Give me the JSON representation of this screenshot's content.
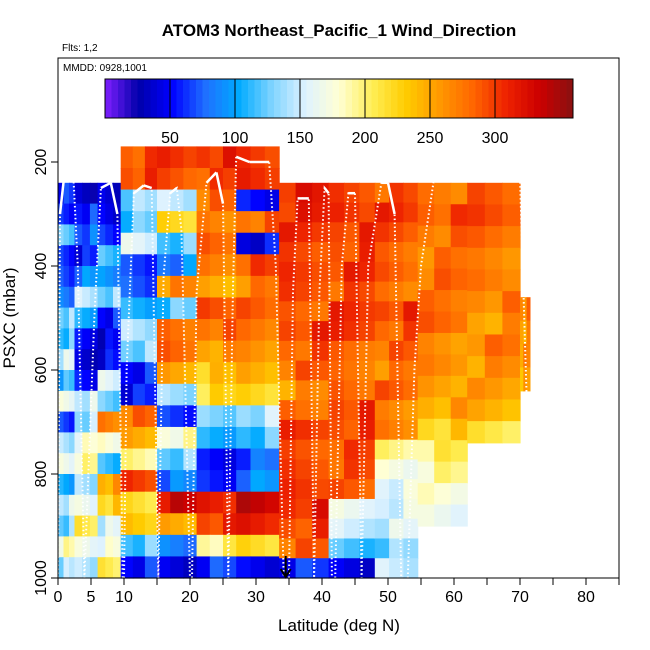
{
  "chart_data": {
    "type": "heatmap",
    "title": "ATOM3 Northeast_Pacific_1 Wind_Direction",
    "flights_label": "Flts: 1,2",
    "date_label": "MMDD: 0928,1001",
    "xlabel": "Latitude (deg N)",
    "ylabel": "PSXC (mbar)",
    "xlim": [
      0,
      85
    ],
    "ylim": [
      1000,
      0
    ],
    "x_ticks": [
      0,
      5,
      10,
      20,
      30,
      40,
      50,
      60,
      70,
      80
    ],
    "y_ticks": [
      200,
      400,
      600,
      800,
      1000
    ],
    "colorbar": {
      "range": [
        0,
        360
      ],
      "ticks": [
        50,
        100,
        150,
        200,
        250,
        300
      ],
      "colors": [
        "#7f1fff",
        "#0000aa",
        "#0000ff",
        "#1f6fff",
        "#00aaff",
        "#7fd4ff",
        "#dff2ff",
        "#ffffd4",
        "#ffee55",
        "#ffcc00",
        "#ff9900",
        "#ff6600",
        "#ee2200",
        "#cc0000",
        "#881111"
      ]
    },
    "arrow_marker": {
      "x": 34.5,
      "label": ""
    },
    "columns": [
      {
        "x0": 0.0,
        "x1": 2.5,
        "p_top": 240,
        "p_bot": 1000,
        "dirs": [
          60,
          50,
          120,
          60,
          70,
          90,
          130,
          120,
          150,
          110,
          160,
          60,
          140,
          170,
          110,
          150,
          130,
          180,
          140
        ]
      },
      {
        "x0": 2.5,
        "x1": 6.0,
        "p_top": 240,
        "p_bot": 1000,
        "dirs": [
          40,
          60,
          80,
          50,
          90,
          140,
          100,
          50,
          40,
          60,
          150,
          140,
          170,
          190,
          130,
          160,
          210,
          170,
          150
        ]
      },
      {
        "x0": 6.0,
        "x1": 9.5,
        "p_top": 240,
        "p_bot": 1000,
        "dirs": [
          30,
          40,
          60,
          120,
          100,
          130,
          60,
          40,
          50,
          150,
          120,
          270,
          180,
          120,
          250,
          230,
          150,
          170,
          200
        ]
      },
      {
        "x0": 9.5,
        "x1": 15.0,
        "p_top": 170,
        "p_bot": 1000,
        "dirs": [
          290,
          300,
          130,
          120,
          150,
          60,
          70,
          110,
          150,
          130,
          60,
          50,
          280,
          240,
          190,
          300,
          220,
          240,
          120,
          60
        ]
      },
      {
        "x0": 15.0,
        "x1": 21.0,
        "p_top": 170,
        "p_bot": 1000,
        "dirs": [
          300,
          290,
          150,
          230,
          120,
          90,
          260,
          120,
          270,
          280,
          250,
          140,
          70,
          180,
          130,
          80,
          330,
          240,
          80,
          40
        ]
      },
      {
        "x0": 21.0,
        "x1": 27.0,
        "p_top": 170,
        "p_bot": 1000,
        "dirs": [
          310,
          290,
          280,
          260,
          280,
          270,
          250,
          300,
          280,
          260,
          230,
          220,
          120,
          100,
          50,
          60,
          320,
          300,
          200,
          60
        ]
      },
      {
        "x0": 27.0,
        "x1": 33.5,
        "p_top": 170,
        "p_bot": 1000,
        "dirs": [
          300,
          310,
          60,
          280,
          50,
          290,
          270,
          280,
          270,
          260,
          250,
          230,
          140,
          120,
          70,
          90,
          330,
          310,
          220,
          50
        ]
      },
      {
        "x0": 33.5,
        "x1": 41.0,
        "p_top": 240,
        "p_bot": 1000,
        "dirs": [
          310,
          310,
          300,
          290,
          300,
          300,
          290,
          300,
          290,
          280,
          260,
          270,
          300,
          290,
          300,
          310,
          310,
          300,
          280,
          60
        ]
      },
      {
        "x0": 41.0,
        "x1": 48.0,
        "p_top": 240,
        "p_bot": 1000,
        "dirs": [
          300,
          310,
          300,
          300,
          300,
          290,
          300,
          300,
          280,
          280,
          290,
          300,
          300,
          290,
          290,
          280,
          160,
          150,
          120,
          50
        ]
      },
      {
        "x0": 48.0,
        "x1": 54.5,
        "p_top": 240,
        "p_bot": 1000,
        "dirs": [
          290,
          300,
          290,
          280,
          290,
          280,
          300,
          290,
          280,
          270,
          280,
          260,
          270,
          200,
          180,
          160,
          160,
          150,
          130,
          140
        ]
      },
      {
        "x0": 54.5,
        "x1": 62.0,
        "p_top": 240,
        "p_bot": 900,
        "dirs": [
          280,
          290,
          280,
          270,
          280,
          270,
          280,
          260,
          270,
          260,
          250,
          230,
          200,
          190,
          170,
          160
        ]
      },
      {
        "x0": 62.0,
        "x1": 70.0,
        "p_top": 240,
        "p_bot": 740,
        "dirs": [
          280,
          290,
          280,
          270,
          280,
          270,
          260,
          270,
          260,
          250,
          240,
          210
        ]
      },
      {
        "x0": 70.0,
        "x1": 71.5,
        "p_top": 460,
        "p_bot": 640,
        "dirs": [
          270,
          260,
          260,
          250
        ]
      }
    ],
    "flight_profiles": [
      [
        [
          0.0,
          1000
        ],
        [
          0.3,
          300
        ],
        [
          1.0,
          220
        ],
        [
          2.3,
          220
        ],
        [
          3.0,
          400
        ],
        [
          4.0,
          1000
        ],
        [
          5.5,
          500
        ],
        [
          6.5,
          250
        ],
        [
          8.0,
          240
        ],
        [
          9.0,
          300
        ],
        [
          9.8,
          1000
        ]
      ],
      [
        [
          10.0,
          1000
        ],
        [
          10.4,
          600
        ],
        [
          11.5,
          260
        ],
        [
          13.0,
          245
        ],
        [
          14.2,
          250
        ],
        [
          15.2,
          1000
        ],
        [
          16.0,
          420
        ],
        [
          17.0,
          260
        ],
        [
          18.0,
          250
        ],
        [
          18.7,
          330
        ],
        [
          20.0,
          1000
        ]
      ],
      [
        [
          20.3,
          1000
        ],
        [
          21.0,
          450
        ],
        [
          22.5,
          240
        ],
        [
          24.0,
          220
        ],
        [
          25.0,
          280
        ],
        [
          25.8,
          1000
        ],
        [
          26.5,
          450
        ],
        [
          27.0,
          190
        ],
        [
          29.0,
          200
        ],
        [
          32.0,
          200
        ],
        [
          33.0,
          400
        ],
        [
          34.2,
          1000
        ]
      ],
      [
        [
          35.0,
          1000
        ],
        [
          35.6,
          450
        ],
        [
          36.3,
          270
        ],
        [
          38.0,
          270
        ],
        [
          38.8,
          1000
        ],
        [
          39.6,
          450
        ],
        [
          40.4,
          250
        ],
        [
          41.0,
          260
        ],
        [
          41.5,
          1000
        ]
      ],
      [
        [
          42.0,
          1000
        ],
        [
          43.0,
          400
        ],
        [
          44.0,
          260
        ],
        [
          45.0,
          260
        ],
        [
          46.0,
          1000
        ],
        [
          47.0,
          400
        ],
        [
          49.0,
          240
        ],
        [
          50.0,
          240
        ],
        [
          51.0,
          300
        ],
        [
          52.0,
          1000
        ]
      ],
      [
        [
          53.0,
          1000
        ],
        [
          54.0,
          600
        ],
        [
          55.0,
          400
        ],
        [
          57.0,
          230
        ],
        [
          60.0,
          230
        ],
        [
          70.0,
          230
        ],
        [
          71.0,
          650
        ],
        [
          71.5,
          950
        ]
      ]
    ]
  }
}
